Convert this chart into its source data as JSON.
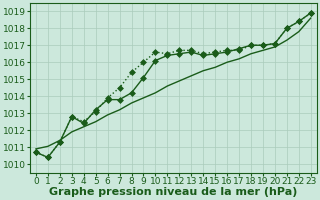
{
  "xlabel": "Graphe pression niveau de la mer (hPa)",
  "xlim": [
    -0.5,
    23.5
  ],
  "ylim": [
    1009.5,
    1019.5
  ],
  "xticks": [
    0,
    1,
    2,
    3,
    4,
    5,
    6,
    7,
    8,
    9,
    10,
    11,
    12,
    13,
    14,
    15,
    16,
    17,
    18,
    19,
    20,
    21,
    22,
    23
  ],
  "yticks": [
    1010,
    1011,
    1012,
    1013,
    1014,
    1015,
    1016,
    1017,
    1018,
    1019
  ],
  "background_color": "#cce8dc",
  "grid_color": "#aaccbb",
  "line_color": "#1a5c1a",
  "line_dotted": [
    1010.7,
    1010.4,
    1011.3,
    1012.8,
    1012.5,
    1013.1,
    1013.9,
    1014.5,
    1015.4,
    1016.0,
    1016.6,
    1016.5,
    1016.7,
    1016.7,
    1016.5,
    1016.6,
    1016.7,
    1016.7,
    1017.0,
    1017.0,
    1017.1,
    1018.0,
    1018.4,
    1018.9
  ],
  "line_solid": [
    1010.7,
    1010.4,
    1011.3,
    1012.8,
    1012.4,
    1013.2,
    1013.8,
    1013.8,
    1014.2,
    1015.1,
    1016.1,
    1016.4,
    1016.5,
    1016.6,
    1016.4,
    1016.5,
    1016.6,
    1016.8,
    1017.0,
    1017.0,
    1017.1,
    1018.0,
    1018.4,
    1018.9
  ],
  "line_smooth": [
    1010.9,
    1011.05,
    1011.4,
    1011.9,
    1012.2,
    1012.5,
    1012.9,
    1013.2,
    1013.6,
    1013.9,
    1014.2,
    1014.6,
    1014.9,
    1015.2,
    1015.5,
    1015.7,
    1016.0,
    1016.2,
    1016.5,
    1016.7,
    1016.9,
    1017.3,
    1017.8,
    1018.6
  ],
  "xlabel_fontsize": 8,
  "tick_fontsize": 6.5,
  "line_width": 1.0,
  "marker_size": 3.5
}
